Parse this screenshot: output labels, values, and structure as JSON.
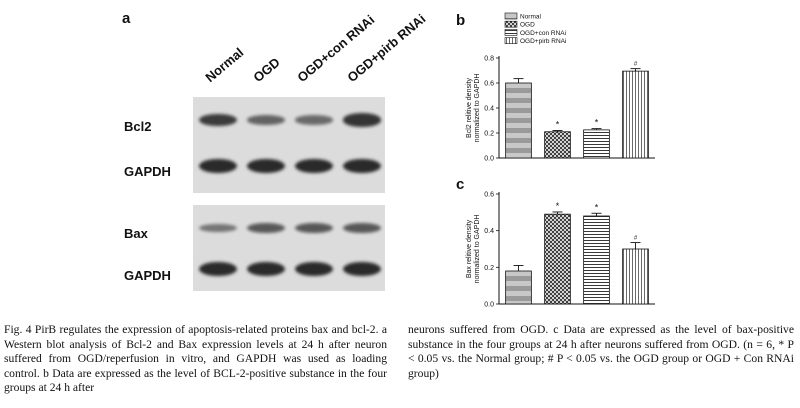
{
  "figure": {
    "panel_a_letter": "a",
    "panel_b_letter": "b",
    "panel_c_letter": "c",
    "lanes": [
      "Normal",
      "OGD",
      "OGD+con RNAi",
      "OGD+pirb RNAi"
    ],
    "rows": [
      "Bcl2",
      "GAPDH",
      "Bax",
      "GAPDH"
    ],
    "band_intensities": {
      "bcl2": [
        0.85,
        0.5,
        0.45,
        0.9
      ],
      "gapdh1": [
        1.0,
        1.0,
        1.0,
        1.0
      ],
      "bax": [
        0.35,
        0.6,
        0.6,
        0.6
      ],
      "gapdh2": [
        1.0,
        1.0,
        1.0,
        1.0
      ]
    }
  },
  "chart_data": [
    {
      "type": "bar",
      "panel": "b",
      "categories": [
        "Normal",
        "OGD",
        "OGD+con RNAi",
        "OGD+pirb RNAi"
      ],
      "values": [
        0.6,
        0.21,
        0.225,
        0.695
      ],
      "errors": [
        0.035,
        0.01,
        0.01,
        0.02
      ],
      "annotations": [
        "",
        "*",
        "*",
        "#"
      ],
      "ylabel": "Bcl2 relitive density normalized to GAPDH",
      "ylim": [
        0,
        0.8
      ],
      "yticks": [
        "0.0",
        "0.2",
        "0.4",
        "0.6",
        "0.8"
      ],
      "legend": [
        "Normal",
        "OGD",
        "OGD+con RNAi",
        "OGD+pirb RNAi"
      ],
      "legend_placement": "top-left"
    },
    {
      "type": "bar",
      "panel": "c",
      "categories": [
        "Normal",
        "OGD",
        "OGD+con RNAi",
        "OGD+pirb RNAi"
      ],
      "values": [
        0.18,
        0.49,
        0.48,
        0.3
      ],
      "errors": [
        0.03,
        0.012,
        0.015,
        0.035
      ],
      "annotations": [
        "",
        "*",
        "*",
        "#"
      ],
      "ylabel": "Bax relitive density normalized to GAPDH",
      "ylim": [
        0,
        0.6
      ],
      "yticks": [
        "0.0",
        "0.2",
        "0.4",
        "0.6"
      ]
    }
  ],
  "caption": {
    "left": "Fig. 4 PirB regulates the expression of apoptosis-related proteins bax and bcl-2. a Western blot analysis of Bcl-2 and Bax expression levels at 24 h after neuron suffered from OGD/reperfusion in vitro, and GAPDH was used as loading control. b Data are expressed as the level of BCL-2-positive substance in the four groups at 24 h after",
    "right": "neurons suffered from OGD. c Data are expressed as the level of bax-positive substance in the four groups at 24 h after neurons suffered from OGD. (n = 6, * P < 0.05 vs. the Normal group; # P < 0.05 vs. the OGD group or OGD + Con RNAi group)"
  }
}
